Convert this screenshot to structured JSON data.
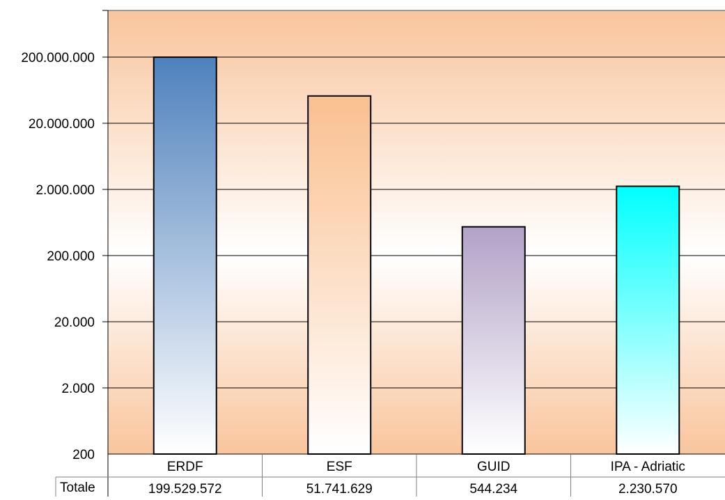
{
  "chart_data": {
    "type": "bar",
    "title": "",
    "xlabel": "",
    "ylabel": "",
    "yscale": "log",
    "ylim": [
      200,
      2000000000
    ],
    "y_ticks": [
      200,
      2000,
      20000,
      200000,
      2000000,
      20000000,
      200000000
    ],
    "y_tick_labels": [
      "200",
      "2.000",
      "20.000",
      "200.000",
      "2.000.000",
      "20.000.000",
      "200.000.000"
    ],
    "categories": [
      "ERDF",
      "ESF",
      "GUID",
      "IPA - Adriatic"
    ],
    "series": [
      {
        "values": [
          199529572,
          51741629,
          544234,
          2230570
        ]
      }
    ],
    "data_table": {
      "row_label": "Totale",
      "cells": [
        "199.529.572",
        "51.741.629",
        "544.234",
        "2.230.570"
      ]
    },
    "bar_colors": [
      "#4f81bd",
      "#fac090",
      "#b2a2c7",
      "#00ffff"
    ],
    "grid": true,
    "legend": "none",
    "background_gradient": [
      "#f9c59c",
      "#ffffff"
    ]
  }
}
